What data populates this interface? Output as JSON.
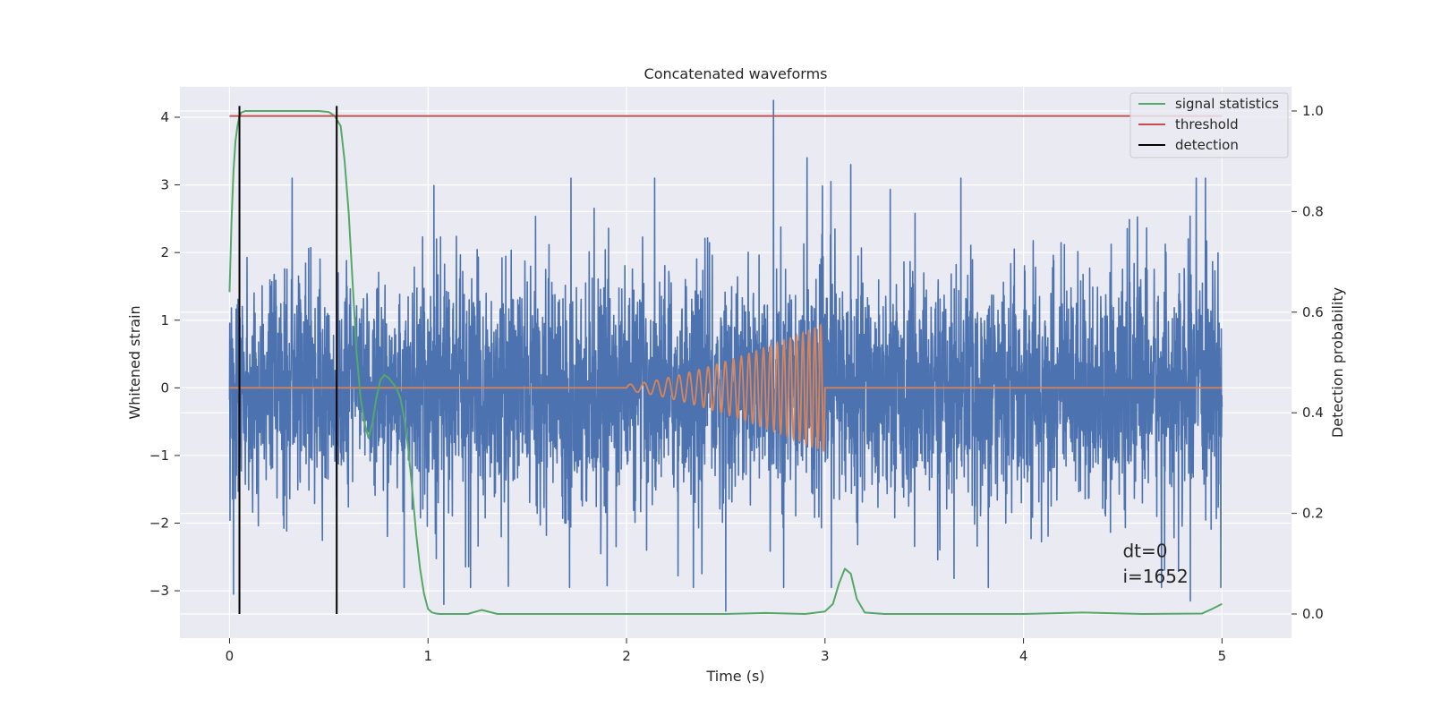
{
  "chart_data": {
    "type": "line",
    "title": "Concatenated waveforms",
    "xlabel": "Time (s)",
    "ylabel": "Whitened strain",
    "y2label": "Detection probability",
    "xlim": [
      -0.25,
      5.35
    ],
    "ylim": [
      -3.7,
      4.45
    ],
    "y2lim": [
      -0.048,
      1.048
    ],
    "xticks": [
      0,
      1,
      2,
      3,
      4,
      5
    ],
    "xtick_labels": [
      "0",
      "1",
      "2",
      "3",
      "4",
      "5"
    ],
    "yticks": [
      -3,
      -2,
      -1,
      0,
      1,
      2,
      3,
      4
    ],
    "ytick_labels": [
      "−3",
      "−2",
      "−1",
      "0",
      "1",
      "2",
      "3",
      "4"
    ],
    "y2ticks": [
      0.0,
      0.2,
      0.4,
      0.6,
      0.8,
      1.0
    ],
    "y2tick_labels": [
      "0.0",
      "0.2",
      "0.4",
      "0.6",
      "0.8",
      "1.0"
    ],
    "grid": true,
    "legend_position": "top-right",
    "legend": [
      {
        "label": "signal statistics",
        "color": "#55a868"
      },
      {
        "label": "threshold",
        "color": "#c44e52"
      },
      {
        "label": "detection",
        "color": "#000000"
      }
    ],
    "series": [
      {
        "kind": "noise",
        "axis": "left",
        "color": "#4c72b0",
        "x_range": [
          0,
          5
        ],
        "envelope": {
          "max": 4.25,
          "min": -3.3,
          "typical_high": 2.0,
          "typical_low": -2.0
        },
        "peaks": [
          {
            "x": 2.74,
            "y": 4.25
          },
          {
            "x": 2.5,
            "y": -3.3
          },
          {
            "x": 1.08,
            "y": -3.2
          },
          {
            "x": 0.02,
            "y": -3.05
          },
          {
            "x": 1.72,
            "y": 3.1
          },
          {
            "x": 3.13,
            "y": 3.3
          },
          {
            "x": 3.03,
            "y": 3.05
          },
          {
            "x": 2.91,
            "y": 3.4
          },
          {
            "x": 4.84,
            "y": -3.15
          }
        ]
      },
      {
        "kind": "chirp",
        "axis": "left",
        "color": "#dd8452",
        "x_range": [
          2.0,
          3.0
        ],
        "amplitude_start": 0.05,
        "amplitude_end": 0.95,
        "cycles": 24
      },
      {
        "name": "signal statistics",
        "axis": "right",
        "color": "#55a868",
        "x": [
          0.0,
          0.01,
          0.02,
          0.03,
          0.04,
          0.05,
          0.06,
          0.08,
          0.1,
          0.15,
          0.2,
          0.3,
          0.4,
          0.45,
          0.5,
          0.53,
          0.56,
          0.58,
          0.6,
          0.62,
          0.64,
          0.66,
          0.68,
          0.7,
          0.72,
          0.74,
          0.76,
          0.78,
          0.8,
          0.82,
          0.84,
          0.86,
          0.88,
          0.9,
          0.92,
          0.94,
          0.96,
          0.98,
          1.0,
          1.02,
          1.04,
          1.06,
          1.1,
          1.2,
          1.27,
          1.35,
          1.5,
          2.0,
          2.5,
          2.7,
          2.9,
          3.0,
          3.04,
          3.07,
          3.1,
          3.13,
          3.16,
          3.2,
          3.3,
          4.0,
          4.3,
          4.6,
          4.9,
          4.95,
          5.0
        ],
        "y": [
          0.64,
          0.78,
          0.88,
          0.94,
          0.97,
          0.99,
          0.997,
          1.0,
          1.0,
          1.0,
          1.0,
          1.0,
          1.0,
          1.0,
          0.998,
          0.99,
          0.97,
          0.9,
          0.8,
          0.66,
          0.52,
          0.43,
          0.38,
          0.35,
          0.38,
          0.43,
          0.465,
          0.475,
          0.47,
          0.46,
          0.45,
          0.43,
          0.39,
          0.33,
          0.25,
          0.16,
          0.09,
          0.04,
          0.01,
          0.003,
          0.001,
          0.0,
          0.0,
          0.0,
          0.008,
          0.0,
          0.0,
          0.0,
          0.0,
          0.002,
          0.0,
          0.005,
          0.02,
          0.06,
          0.09,
          0.08,
          0.03,
          0.003,
          0.0,
          0.0,
          0.003,
          0.0,
          0.001,
          0.01,
          0.02
        ]
      },
      {
        "name": "threshold",
        "axis": "right",
        "color": "#c44e52",
        "x": [
          0.0,
          5.0
        ],
        "y": [
          0.99,
          0.99
        ]
      }
    ],
    "detections": [
      {
        "x": 0.05
      },
      {
        "x": 0.54
      }
    ],
    "annotations": [
      {
        "text": "dt=0",
        "x": 4.5,
        "y": -2.5
      },
      {
        "text": "i=1652",
        "x": 4.5,
        "y": -2.88
      }
    ]
  }
}
